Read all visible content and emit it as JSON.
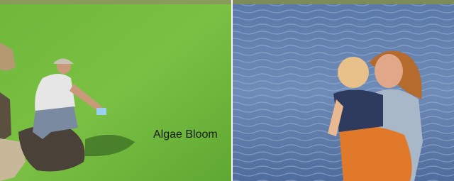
{
  "caption": "Algae Bloom"
}
